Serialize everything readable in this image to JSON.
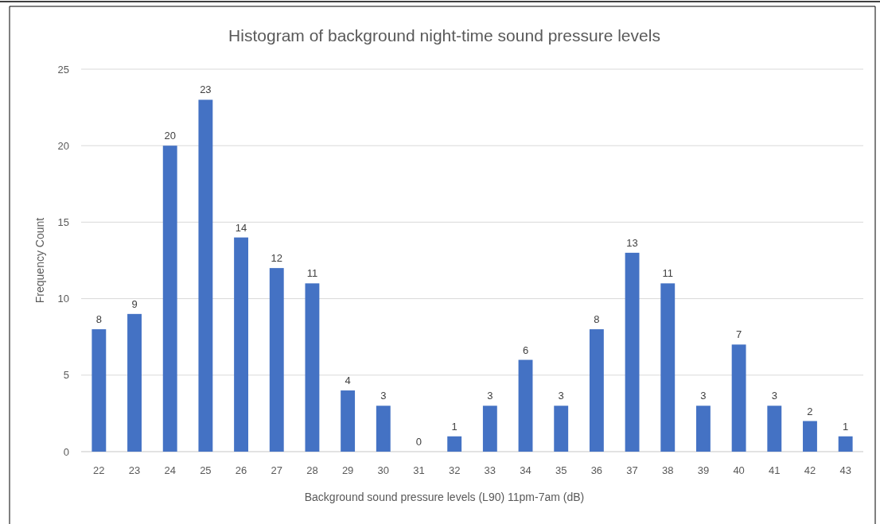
{
  "chart_data": {
    "type": "bar",
    "title": "Histogram of background night-time sound pressure levels",
    "xlabel": "Background sound pressure levels (L90) 11pm-7am  (dB)",
    "ylabel": "Frequency Count",
    "categories": [
      "22",
      "23",
      "24",
      "25",
      "26",
      "27",
      "28",
      "29",
      "30",
      "31",
      "32",
      "33",
      "34",
      "35",
      "36",
      "37",
      "38",
      "39",
      "40",
      "41",
      "42",
      "43"
    ],
    "values": [
      8,
      9,
      20,
      23,
      14,
      12,
      11,
      4,
      3,
      0,
      1,
      3,
      6,
      3,
      8,
      13,
      11,
      3,
      7,
      3,
      2,
      1
    ],
    "color": "#4472c4",
    "ylim": [
      0,
      25
    ],
    "yticks": [
      0,
      5,
      10,
      15,
      20,
      25
    ],
    "grid": "y",
    "data_labels": true
  }
}
